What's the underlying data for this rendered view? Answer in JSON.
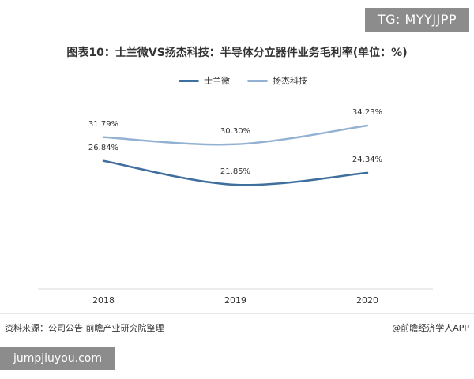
{
  "tg_badge": "TG: MYYJJPP",
  "site_badge": "jumpjiuyou.com",
  "source_text": "资料来源：公司公告 前瞻产业研究院整理",
  "credit_text": "@前瞻经济学人APP",
  "colors": {
    "series_1": "#3f6f9e",
    "series_2": "#93b1d3"
  },
  "chart_data": {
    "type": "line",
    "title": "图表10：士兰微VS扬杰科技：半导体分立器件业务毛利率(单位：%)",
    "xlabel": "",
    "ylabel": "",
    "categories": [
      "2018",
      "2019",
      "2020"
    ],
    "series": [
      {
        "name": "士兰微",
        "values": [
          26.84,
          21.85,
          24.34
        ],
        "labels": [
          "26.84%",
          "21.85%",
          "24.34%"
        ]
      },
      {
        "name": "扬杰科技",
        "values": [
          31.79,
          30.3,
          34.23
        ],
        "labels": [
          "31.79%",
          "30.30%",
          "34.23%"
        ]
      }
    ],
    "ylim": [
      0,
      40
    ],
    "grid": false,
    "legend": "top-center",
    "smooth": true
  }
}
